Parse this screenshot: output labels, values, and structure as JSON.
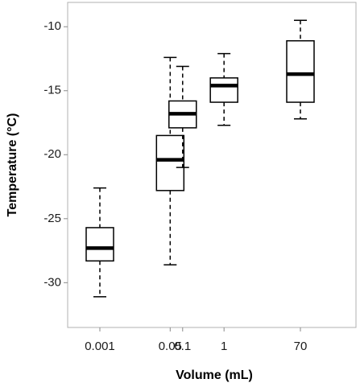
{
  "chart_data": {
    "type": "box",
    "title": "",
    "xlabel": "Volume (mL)",
    "ylabel": "Temperature (°C)",
    "ylim": [
      -33.5,
      -8.1
    ],
    "x_scale": "log",
    "y_ticks": [
      -10,
      -15,
      -20,
      -25,
      -30
    ],
    "x_tick_labels": [
      "0.001",
      "0.05",
      "0.1",
      "1",
      "70"
    ],
    "grid": false,
    "boxes": [
      {
        "category": "0.001",
        "whisker_low": -31.1,
        "q1": -28.3,
        "median": -27.3,
        "q3": -25.7,
        "whisker_high": -22.6
      },
      {
        "category": "0.05",
        "whisker_low": -28.6,
        "q1": -22.8,
        "median": -20.4,
        "q3": -18.5,
        "whisker_high": -12.4
      },
      {
        "category": "0.1",
        "whisker_low": -21.0,
        "q1": -17.9,
        "median": -16.8,
        "q3": -15.8,
        "whisker_high": -13.1
      },
      {
        "category": "1",
        "whisker_low": -17.7,
        "q1": -15.9,
        "median": -14.6,
        "q3": -14.0,
        "whisker_high": -12.1
      },
      {
        "category": "70",
        "whisker_low": -17.2,
        "q1": -15.9,
        "median": -13.7,
        "q3": -11.1,
        "whisker_high": -9.5
      }
    ]
  }
}
